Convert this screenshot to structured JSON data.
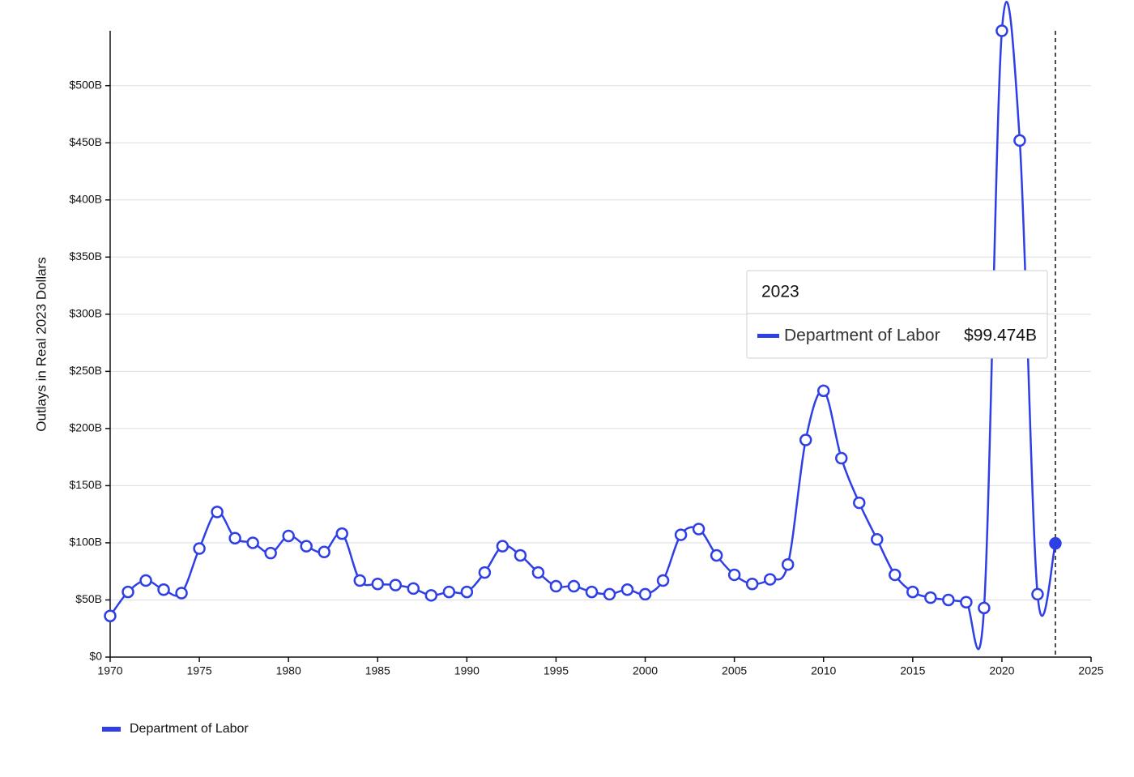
{
  "chart_data": {
    "type": "line",
    "y_label": "Outlays in Real 2023 Dollars",
    "x": [
      1970,
      1971,
      1972,
      1973,
      1974,
      1975,
      1976,
      1977,
      1978,
      1979,
      1980,
      1981,
      1982,
      1983,
      1984,
      1985,
      1986,
      1987,
      1988,
      1989,
      1990,
      1991,
      1992,
      1993,
      1994,
      1995,
      1996,
      1997,
      1998,
      1999,
      2000,
      2001,
      2002,
      2003,
      2004,
      2005,
      2006,
      2007,
      2008,
      2009,
      2010,
      2011,
      2012,
      2013,
      2014,
      2015,
      2016,
      2017,
      2018,
      2019,
      2020,
      2021,
      2022,
      2023
    ],
    "series": [
      {
        "name": "Department of Labor",
        "color": "#2f3fe6",
        "values": [
          36,
          57,
          67,
          59,
          56,
          95,
          127,
          104,
          100,
          91,
          106,
          97,
          92,
          108,
          67,
          64,
          63,
          60,
          54,
          57,
          57,
          74,
          97,
          89,
          74,
          62,
          62,
          57,
          55,
          59,
          55,
          67,
          107,
          112,
          89,
          72,
          64,
          68,
          81,
          190,
          233,
          174,
          135,
          103,
          72,
          57,
          52,
          50,
          48,
          43,
          548,
          452,
          55,
          99.474
        ]
      }
    ],
    "xlim": [
      1970,
      2025
    ],
    "xticks": [
      1970,
      1975,
      1980,
      1985,
      1990,
      1995,
      2000,
      2005,
      2010,
      2015,
      2020,
      2025
    ],
    "ylim": [
      0,
      548
    ],
    "yticks": [
      {
        "value": 0,
        "label": "$0"
      },
      {
        "value": 50,
        "label": "$50B"
      },
      {
        "value": 100,
        "label": "$100B"
      },
      {
        "value": 150,
        "label": "$150B"
      },
      {
        "value": 200,
        "label": "$200B"
      },
      {
        "value": 250,
        "label": "$250B"
      },
      {
        "value": 300,
        "label": "$300B"
      },
      {
        "value": 350,
        "label": "$350B"
      },
      {
        "value": 400,
        "label": "$400B"
      },
      {
        "value": 450,
        "label": "$450B"
      },
      {
        "value": 500,
        "label": "$500B"
      }
    ],
    "grid": true,
    "legend": "bottom-left",
    "tooltip": {
      "x": 2023,
      "label": "$99.474B"
    }
  }
}
